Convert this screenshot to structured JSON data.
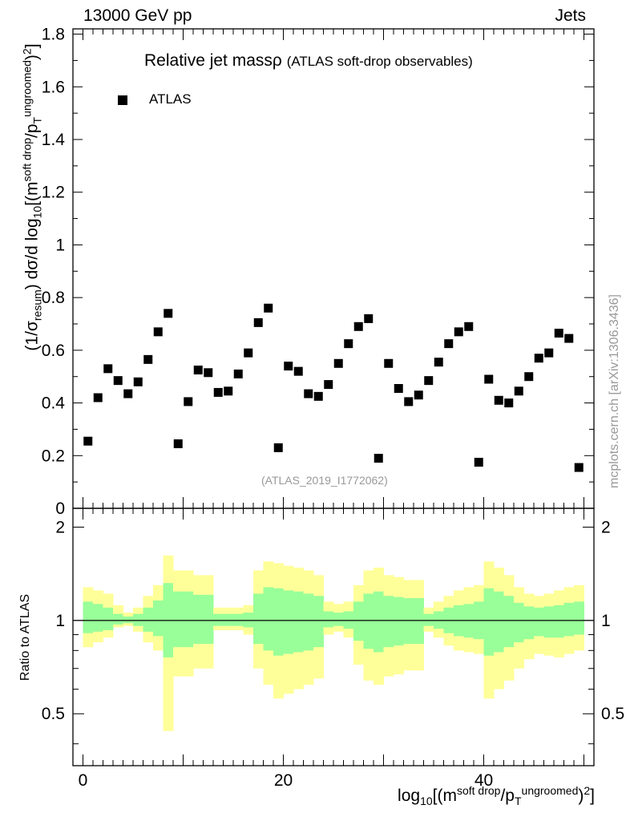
{
  "header": {
    "left": "13000 GeV pp",
    "right": "Jets"
  },
  "title": {
    "main": "Relative jet massρ",
    "sub": "(ATLAS soft-drop observables)"
  },
  "legend": {
    "label": "ATLAS"
  },
  "reference_label": "(ATLAS_2019_I1772062)",
  "side_label": "mcplots.cern.ch [arXiv:1306.3436]",
  "colors": {
    "data": "#000000",
    "band_outer": "#ffff99",
    "band_inner": "#99ff99"
  },
  "chart_data": [
    {
      "type": "scatter",
      "title": "Relative jet massρ (ATLAS soft-drop observables)",
      "ylabel_parts": {
        "pre": "(1/σ",
        "sub1": "resum",
        "mid": ") dσ/d log",
        "sub2": "10",
        "post": "[(m",
        "sup1": "soft drop",
        "post2": "/p",
        "sub3": "T",
        "sup2": "ungroomed",
        "post3": ")",
        "sup3": "2",
        "post4": "]"
      },
      "ylim": [
        0,
        1.82
      ],
      "xlim": [
        -1,
        51
      ],
      "x_ticks": [
        0,
        20,
        40
      ],
      "y_ticks": [
        "0",
        "0.2",
        "0.4",
        "0.6",
        "0.8",
        "1",
        "1.2",
        "1.4",
        "1.6",
        "1.8"
      ],
      "series": [
        {
          "name": "ATLAS",
          "x": [
            0.5,
            1.5,
            2.5,
            3.5,
            4.5,
            5.5,
            6.5,
            7.5,
            8.5,
            9.5,
            10.5,
            11.5,
            12.5,
            13.5,
            14.5,
            15.5,
            16.5,
            17.5,
            18.5,
            19.5,
            20.5,
            21.5,
            22.5,
            23.5,
            24.5,
            25.5,
            26.5,
            27.5,
            28.5,
            29.5,
            30.5,
            31.5,
            32.5,
            33.5,
            34.5,
            35.5,
            36.5,
            37.5,
            38.5,
            39.5,
            40.5,
            41.5,
            42.5,
            43.5,
            44.5,
            45.5,
            46.5,
            47.5,
            48.5,
            49.5
          ],
          "y": [
            0.255,
            0.42,
            0.53,
            0.485,
            0.435,
            0.48,
            0.565,
            0.67,
            0.74,
            0.245,
            0.405,
            0.525,
            0.515,
            0.44,
            0.445,
            0.51,
            0.59,
            0.705,
            0.76,
            0.23,
            0.54,
            0.52,
            0.435,
            0.425,
            0.47,
            0.55,
            0.625,
            0.69,
            0.72,
            0.19,
            0.55,
            0.455,
            0.405,
            0.43,
            0.485,
            0.555,
            0.625,
            0.67,
            0.69,
            0.175,
            0.49,
            0.41,
            0.4,
            0.445,
            0.5,
            0.57,
            0.59,
            0.665,
            0.645,
            0.155
          ]
        }
      ]
    },
    {
      "type": "area",
      "ylabel": "Ratio to ATLAS",
      "ylim": [
        0.34,
        2.3
      ],
      "xlim": [
        -1,
        51
      ],
      "x_ticks": [
        "0",
        "20",
        "40"
      ],
      "y_ticks": [
        "0.5",
        "1",
        "2"
      ],
      "reference_line": 1,
      "xlabel_parts": {
        "pre": "log",
        "sub": "10",
        "mid": "[(m",
        "sup1": "soft drop",
        "mid2": "/p",
        "sub2": "T",
        "sup2": "ungroomed",
        "post": ")",
        "sup3": "2",
        "post2": "]"
      },
      "bands": {
        "outer_up": [
          1.28,
          1.25,
          1.22,
          1.12,
          1.06,
          1.1,
          1.2,
          1.3,
          1.62,
          1.45,
          1.45,
          1.4,
          1.4,
          1.1,
          1.1,
          1.1,
          1.12,
          1.45,
          1.55,
          1.53,
          1.5,
          1.48,
          1.45,
          1.4,
          1.15,
          1.13,
          1.15,
          1.3,
          1.45,
          1.48,
          1.4,
          1.38,
          1.35,
          1.35,
          1.1,
          1.15,
          1.2,
          1.25,
          1.28,
          1.3,
          1.55,
          1.48,
          1.4,
          1.28,
          1.22,
          1.2,
          1.22,
          1.25,
          1.28,
          1.3
        ],
        "outer_down": [
          0.82,
          0.85,
          0.88,
          0.95,
          0.96,
          0.92,
          0.85,
          0.8,
          0.44,
          0.66,
          0.66,
          0.7,
          0.7,
          0.93,
          0.93,
          0.93,
          0.9,
          0.7,
          0.62,
          0.56,
          0.58,
          0.6,
          0.62,
          0.65,
          0.9,
          0.92,
          0.88,
          0.72,
          0.64,
          0.62,
          0.66,
          0.67,
          0.69,
          0.69,
          0.92,
          0.88,
          0.83,
          0.8,
          0.79,
          0.78,
          0.56,
          0.6,
          0.64,
          0.7,
          0.75,
          0.78,
          0.77,
          0.76,
          0.78,
          0.8
        ],
        "inner_up": [
          1.15,
          1.13,
          1.1,
          1.05,
          1.03,
          1.05,
          1.1,
          1.16,
          1.32,
          1.24,
          1.24,
          1.21,
          1.21,
          1.05,
          1.05,
          1.05,
          1.06,
          1.22,
          1.28,
          1.27,
          1.25,
          1.24,
          1.22,
          1.2,
          1.07,
          1.06,
          1.07,
          1.15,
          1.22,
          1.24,
          1.2,
          1.19,
          1.18,
          1.18,
          1.05,
          1.07,
          1.1,
          1.12,
          1.13,
          1.15,
          1.27,
          1.24,
          1.2,
          1.14,
          1.11,
          1.1,
          1.11,
          1.12,
          1.14,
          1.15
        ],
        "inner_down": [
          0.91,
          0.92,
          0.93,
          0.97,
          0.98,
          0.96,
          0.92,
          0.89,
          0.76,
          0.82,
          0.82,
          0.84,
          0.84,
          0.96,
          0.96,
          0.96,
          0.95,
          0.84,
          0.8,
          0.77,
          0.78,
          0.79,
          0.8,
          0.82,
          0.95,
          0.96,
          0.94,
          0.86,
          0.81,
          0.79,
          0.82,
          0.83,
          0.84,
          0.84,
          0.96,
          0.94,
          0.91,
          0.89,
          0.88,
          0.87,
          0.77,
          0.79,
          0.82,
          0.85,
          0.87,
          0.89,
          0.88,
          0.88,
          0.89,
          0.9
        ]
      }
    }
  ]
}
